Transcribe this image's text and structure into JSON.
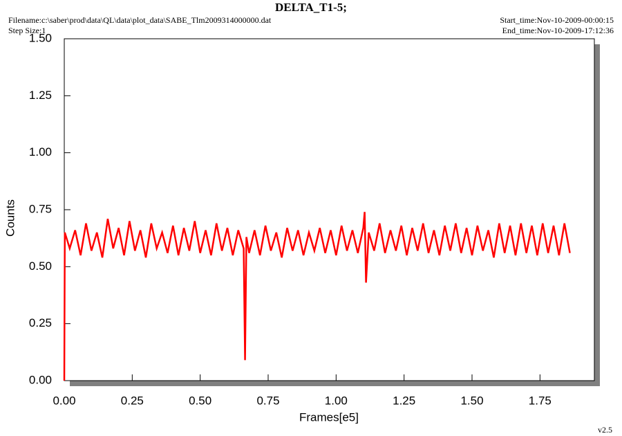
{
  "chart_data": {
    "type": "line",
    "title": "DELTA_T1-5;",
    "filename": "Filename:c:\\saber\\prod\\data\\QL\\data\\plot_data\\SABE_Tlm2009314000000.dat",
    "step_size": "Step Size:1",
    "start_time": "Start_time:Nov-10-2009-00:00:15",
    "end_time": "End_time:Nov-10-2009-17:12:36",
    "version": "v2.5",
    "x_label": "Frames[e5]",
    "y_label": "Counts",
    "xlim": [
      0,
      1.95
    ],
    "ylim": [
      0,
      1.5
    ],
    "xticks": [
      {
        "value": 0,
        "label": "0.00"
      },
      {
        "value": 0.25,
        "label": "0.25"
      },
      {
        "value": 0.5,
        "label": "0.50"
      },
      {
        "value": 0.75,
        "label": "0.75"
      },
      {
        "value": 1,
        "label": "1.00"
      },
      {
        "value": 1.25,
        "label": "1.25"
      },
      {
        "value": 1.5,
        "label": "1.50"
      },
      {
        "value": 1.75,
        "label": "1.75"
      }
    ],
    "yticks": [
      {
        "value": 0,
        "label": "0.00"
      },
      {
        "value": 0.25,
        "label": "0.25"
      },
      {
        "value": 0.5,
        "label": "0.50"
      },
      {
        "value": 0.75,
        "label": "0.75"
      },
      {
        "value": 1,
        "label": "1.00"
      },
      {
        "value": 1.25,
        "label": "1.25"
      },
      {
        "value": 1.5,
        "label": "1.50"
      }
    ],
    "series": [
      {
        "color": "#ff0000",
        "x": [
          0,
          0.002,
          0.02,
          0.04,
          0.06,
          0.08,
          0.1,
          0.12,
          0.14,
          0.16,
          0.18,
          0.2,
          0.22,
          0.24,
          0.26,
          0.28,
          0.3,
          0.32,
          0.34,
          0.36,
          0.38,
          0.4,
          0.42,
          0.44,
          0.46,
          0.48,
          0.5,
          0.52,
          0.54,
          0.56,
          0.58,
          0.6,
          0.62,
          0.64,
          0.66,
          0.665,
          0.67,
          0.68,
          0.7,
          0.72,
          0.74,
          0.76,
          0.78,
          0.8,
          0.82,
          0.84,
          0.86,
          0.88,
          0.9,
          0.92,
          0.94,
          0.96,
          0.98,
          1.0,
          1.02,
          1.04,
          1.06,
          1.08,
          1.1,
          1.105,
          1.11,
          1.12,
          1.14,
          1.16,
          1.18,
          1.2,
          1.22,
          1.24,
          1.26,
          1.28,
          1.3,
          1.32,
          1.34,
          1.36,
          1.38,
          1.4,
          1.42,
          1.44,
          1.46,
          1.48,
          1.5,
          1.52,
          1.54,
          1.56,
          1.58,
          1.6,
          1.62,
          1.64,
          1.66,
          1.68,
          1.7,
          1.72,
          1.74,
          1.76,
          1.78,
          1.8,
          1.82,
          1.84,
          1.86
        ],
        "values": [
          0,
          0.65,
          0.58,
          0.66,
          0.55,
          0.69,
          0.57,
          0.65,
          0.54,
          0.71,
          0.58,
          0.67,
          0.55,
          0.7,
          0.57,
          0.66,
          0.54,
          0.69,
          0.58,
          0.65,
          0.56,
          0.68,
          0.55,
          0.67,
          0.57,
          0.7,
          0.56,
          0.66,
          0.55,
          0.69,
          0.57,
          0.67,
          0.55,
          0.66,
          0.58,
          0.09,
          0.63,
          0.56,
          0.66,
          0.55,
          0.68,
          0.57,
          0.65,
          0.54,
          0.67,
          0.57,
          0.66,
          0.55,
          0.65,
          0.57,
          0.67,
          0.56,
          0.66,
          0.55,
          0.68,
          0.57,
          0.66,
          0.56,
          0.67,
          0.74,
          0.43,
          0.65,
          0.57,
          0.69,
          0.56,
          0.66,
          0.57,
          0.68,
          0.55,
          0.67,
          0.57,
          0.69,
          0.56,
          0.66,
          0.55,
          0.68,
          0.57,
          0.69,
          0.56,
          0.67,
          0.55,
          0.68,
          0.57,
          0.66,
          0.54,
          0.69,
          0.56,
          0.68,
          0.55,
          0.69,
          0.56,
          0.68,
          0.55,
          0.69,
          0.56,
          0.68,
          0.55,
          0.69,
          0.56
        ]
      }
    ]
  }
}
